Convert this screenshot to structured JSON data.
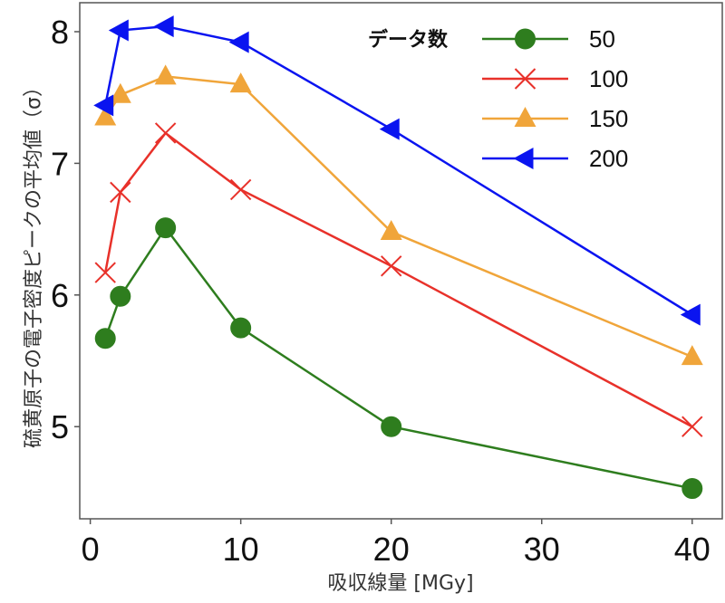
{
  "chart_data": {
    "type": "line",
    "title": "",
    "xlabel": "吸収線量 [MGy]",
    "ylabel": "硫黄原子の電子密度ピークの平均値（σ）",
    "xlim": [
      -0.7,
      42
    ],
    "ylim": [
      4.3,
      8.22
    ],
    "xticks": [
      0,
      10,
      20,
      30,
      40
    ],
    "yticks": [
      5,
      6,
      7,
      8
    ],
    "xtick_labels": [
      "0",
      "10",
      "20",
      "30",
      "40"
    ],
    "ytick_labels": [
      "5",
      "6",
      "7",
      "8"
    ],
    "grid": false,
    "legend": {
      "title": "データ数",
      "placement": "top-right"
    },
    "x": [
      1,
      2,
      5,
      10,
      20,
      40
    ],
    "series": [
      {
        "name": "50",
        "color": "#2e7d1e",
        "marker": "circle",
        "values": [
          5.67,
          5.99,
          6.51,
          5.75,
          5.0,
          4.53
        ]
      },
      {
        "name": "100",
        "color": "#e8312a",
        "marker": "x",
        "values": [
          6.17,
          6.78,
          7.23,
          6.8,
          6.22,
          5.0
        ]
      },
      {
        "name": "150",
        "color": "#f0a53a",
        "marker": "triangle-up",
        "values": [
          7.35,
          7.52,
          7.66,
          7.6,
          6.48,
          5.53
        ]
      },
      {
        "name": "200",
        "color": "#0a14f0",
        "marker": "triangle-left",
        "values": [
          7.44,
          8.01,
          8.04,
          7.92,
          7.26,
          5.85
        ]
      }
    ]
  }
}
